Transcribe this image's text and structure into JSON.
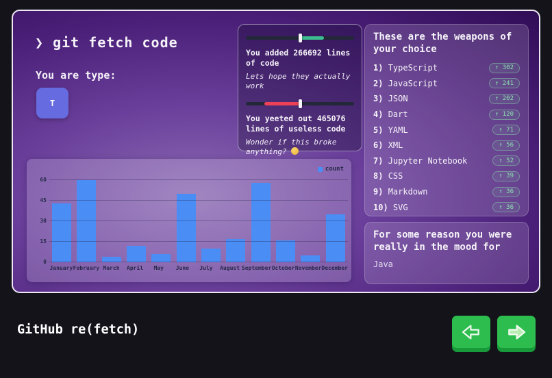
{
  "card": {
    "title": "❯ git fetch code",
    "type": {
      "label": "You are type:",
      "value": "T",
      "button_color": "#666be0"
    }
  },
  "stats": {
    "added": {
      "text": "You added 266692 lines of code",
      "subtext": "Lets hope they actually work",
      "slider": {
        "fill_color": "#3bbd8f",
        "fill_start_pct": 50,
        "fill_end_pct": 72,
        "thumb_pct": 50
      }
    },
    "removed": {
      "text": "You yeeted out 465076 lines of useless code",
      "subtext": "Wonder if this broke anything?",
      "emoji": "🤔",
      "slider": {
        "fill_color": "#ec4157",
        "fill_start_pct": 17,
        "fill_end_pct": 50,
        "thumb_pct": 50
      }
    }
  },
  "languages": {
    "heading": "These are the weapons of your choice",
    "items": [
      {
        "rank": "1)",
        "name": "TypeScript",
        "badge": "↑ 302"
      },
      {
        "rank": "2)",
        "name": "JavaScript",
        "badge": "↑ 241"
      },
      {
        "rank": "3)",
        "name": "JSON",
        "badge": "↑ 202"
      },
      {
        "rank": "4)",
        "name": "Dart",
        "badge": "↑ 120"
      },
      {
        "rank": "5)",
        "name": "YAML",
        "badge": "↑ 71"
      },
      {
        "rank": "6)",
        "name": "XML",
        "badge": "↑ 56"
      },
      {
        "rank": "7)",
        "name": "Jupyter Notebook",
        "badge": "↑ 52"
      },
      {
        "rank": "8)",
        "name": "CSS",
        "badge": "↑ 39"
      },
      {
        "rank": "9)",
        "name": "Markdown",
        "badge": "↑ 36"
      },
      {
        "rank": "10)",
        "name": "SVG",
        "badge": "↑ 36"
      }
    ]
  },
  "mood": {
    "heading": "For some reason you were really in the mood for",
    "value": "Java"
  },
  "chart_data": {
    "type": "bar",
    "categories": [
      "January",
      "February",
      "March",
      "April",
      "May",
      "June",
      "July",
      "August",
      "September",
      "October",
      "November",
      "December"
    ],
    "values": [
      43,
      60,
      4,
      12,
      6,
      50,
      10,
      17,
      58,
      16,
      5,
      35
    ],
    "series_name": "count",
    "legend_position": "top-right",
    "bar_color": "#4a8df5",
    "yticks": [
      0,
      15,
      30,
      45,
      60
    ],
    "ylim": [
      0,
      60
    ],
    "grid": true,
    "xlabel": "",
    "ylabel": ""
  },
  "footer": {
    "title": "GitHub re(fetch)",
    "prev_button": "left-arrow",
    "next_button": "right-arrow",
    "button_color": "#2dbd4f"
  }
}
